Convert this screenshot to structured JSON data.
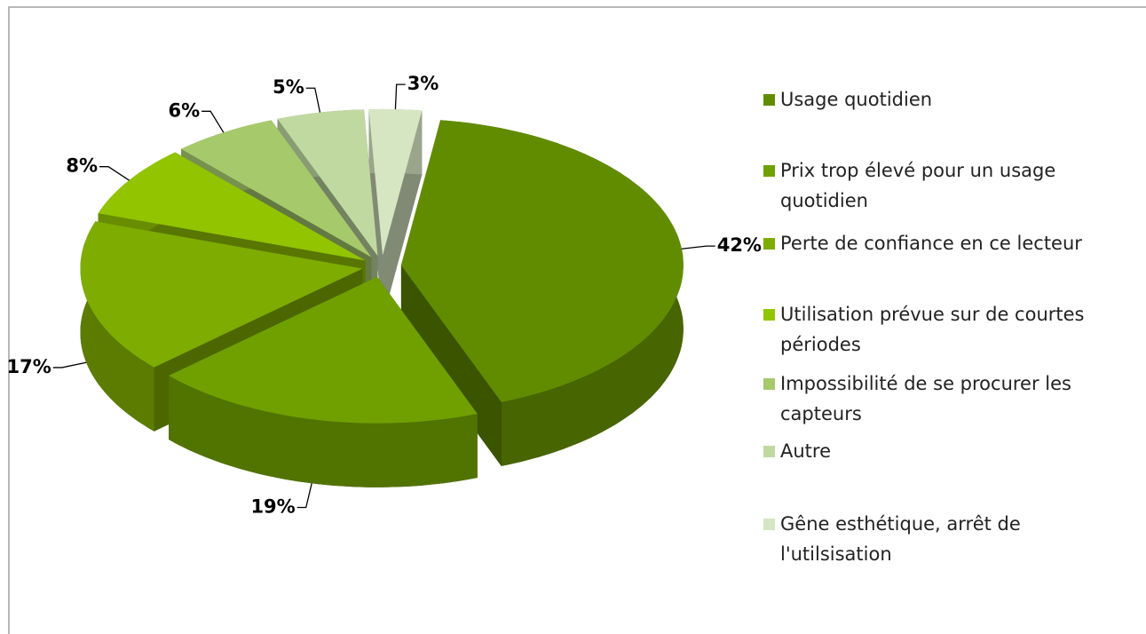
{
  "chart_data": {
    "type": "pie",
    "categories": [
      "Usage quotidien",
      "Prix trop élevé pour un usage quotidien",
      "Perte de confiance en ce lecteur",
      "Utilisation prévue sur de courtes périodes",
      "Impossibilité de se procurer les capteurs",
      "Autre",
      "Gêne esthétique, arrêt de l'utilsisation"
    ],
    "values": [
      42,
      19,
      17,
      8,
      6,
      5,
      3
    ],
    "value_labels": [
      "42%",
      "19%",
      "17%",
      "8%",
      "6%",
      "5%",
      "3%"
    ],
    "colors": [
      "#628c00",
      "#70a000",
      "#7eac00",
      "#92c400",
      "#a6c96c",
      "#c0d9a0",
      "#d6e6c2"
    ],
    "legend": "right"
  }
}
